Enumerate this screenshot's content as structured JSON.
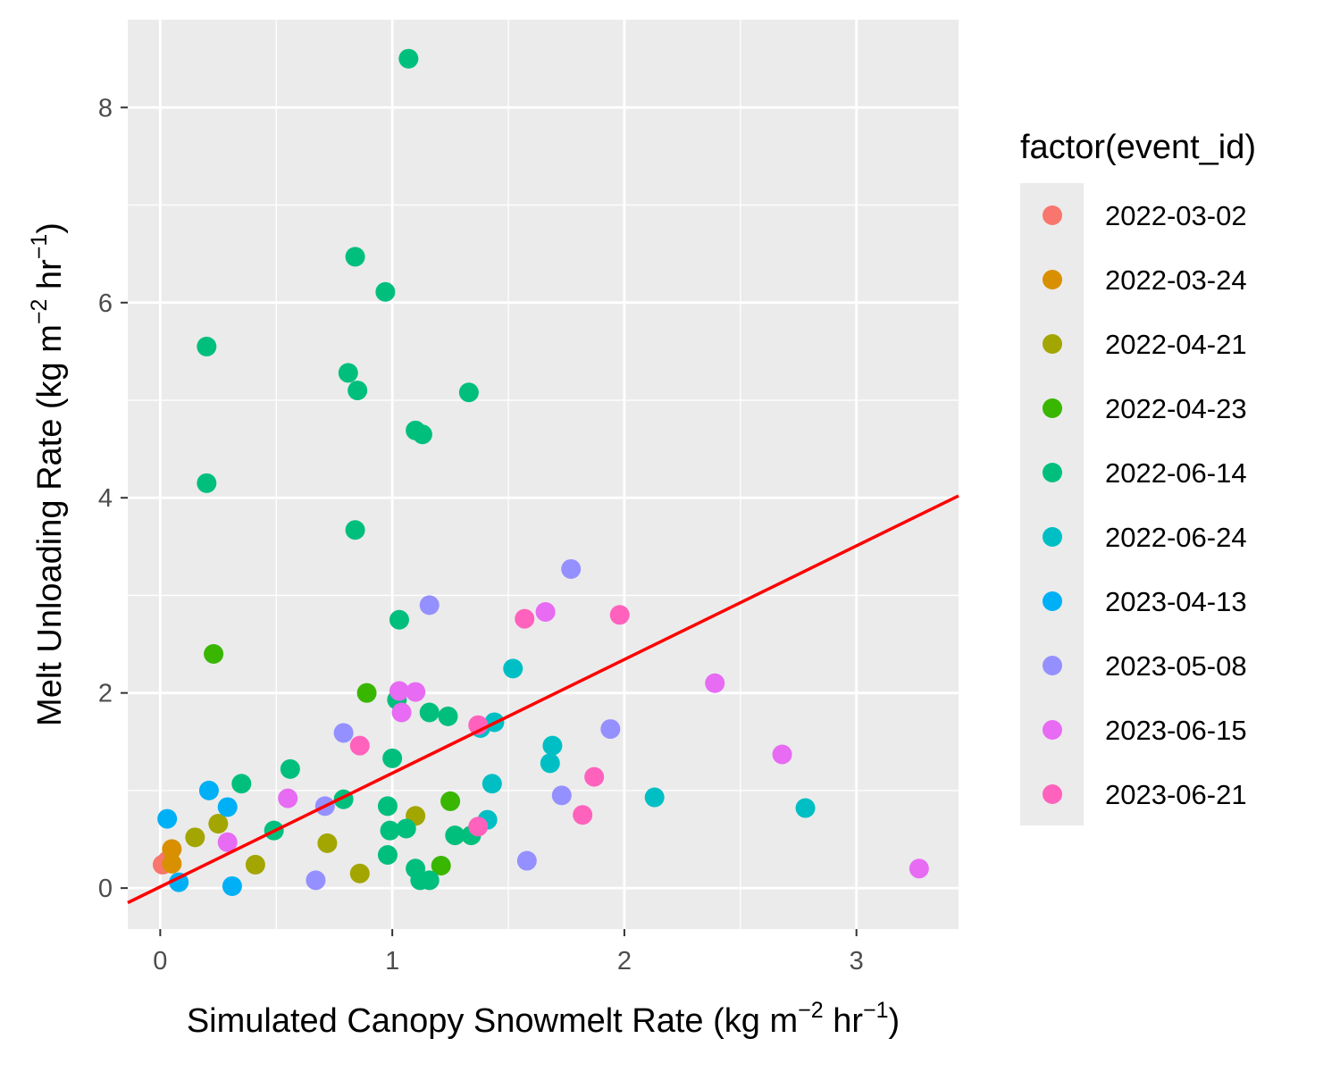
{
  "chart_data": {
    "type": "scatter",
    "xlabel": "Simulated Canopy Snowmelt Rate (kg m",
    "xlabel_sup1": "−2",
    "xlabel_mid": " hr",
    "xlabel_sup2": "−1",
    "xlabel_end": ")",
    "ylabel": "Melt Unloading Rate (kg m",
    "ylabel_sup1": "−2",
    "ylabel_mid": " hr",
    "ylabel_sup2": "−1",
    "ylabel_end": ")",
    "xlim": [
      -0.14,
      3.44
    ],
    "ylim": [
      -0.42,
      8.9
    ],
    "x_ticks": [
      0,
      1,
      2,
      3
    ],
    "y_ticks": [
      0,
      2,
      4,
      6,
      8
    ],
    "grid": true,
    "legend": {
      "title": "factor(event_id)",
      "position": "right"
    },
    "fit_line": {
      "x": [
        -0.14,
        3.44
      ],
      "y": [
        -0.15,
        4.02
      ],
      "color": "#ff0000"
    },
    "series": [
      {
        "name": "2022-03-02",
        "color": "#F8766D",
        "points": [
          [
            0.01,
            0.24
          ],
          [
            0.03,
            0.28
          ]
        ]
      },
      {
        "name": "2022-03-24",
        "color": "#D89000",
        "points": [
          [
            0.05,
            0.4
          ],
          [
            0.05,
            0.25
          ]
        ]
      },
      {
        "name": "2022-04-21",
        "color": "#A3A500",
        "points": [
          [
            0.15,
            0.52
          ],
          [
            0.25,
            0.66
          ],
          [
            0.41,
            0.24
          ],
          [
            0.72,
            0.46
          ],
          [
            0.86,
            0.15
          ],
          [
            1.1,
            0.74
          ]
        ]
      },
      {
        "name": "2022-04-23",
        "color": "#39B600",
        "points": [
          [
            0.23,
            2.4
          ],
          [
            0.89,
            2.0
          ],
          [
            1.21,
            0.23
          ],
          [
            1.25,
            0.89
          ]
        ]
      },
      {
        "name": "2022-06-14",
        "color": "#00BF7D",
        "points": [
          [
            1.07,
            8.5
          ],
          [
            0.84,
            6.47
          ],
          [
            0.97,
            6.11
          ],
          [
            0.2,
            5.55
          ],
          [
            0.81,
            5.28
          ],
          [
            0.85,
            5.1
          ],
          [
            1.33,
            5.08
          ],
          [
            1.1,
            4.69
          ],
          [
            1.13,
            4.65
          ],
          [
            0.2,
            4.15
          ],
          [
            0.84,
            3.67
          ],
          [
            1.03,
            2.75
          ],
          [
            1.02,
            1.93
          ],
          [
            1.16,
            1.8
          ],
          [
            1.24,
            1.76
          ],
          [
            1.0,
            1.33
          ],
          [
            0.35,
            1.07
          ],
          [
            0.56,
            1.22
          ],
          [
            0.79,
            0.91
          ],
          [
            0.49,
            0.59
          ],
          [
            0.98,
            0.84
          ],
          [
            0.99,
            0.59
          ],
          [
            1.06,
            0.61
          ],
          [
            0.98,
            0.34
          ],
          [
            1.1,
            0.2
          ],
          [
            1.12,
            0.08
          ],
          [
            1.16,
            0.08
          ],
          [
            1.27,
            0.54
          ],
          [
            1.34,
            0.54
          ]
        ]
      },
      {
        "name": "2022-06-24",
        "color": "#00BFC4",
        "points": [
          [
            1.52,
            2.25
          ],
          [
            1.38,
            1.64
          ],
          [
            1.44,
            1.7
          ],
          [
            1.69,
            1.46
          ],
          [
            1.68,
            1.28
          ],
          [
            1.43,
            1.07
          ],
          [
            1.41,
            0.7
          ],
          [
            2.13,
            0.93
          ],
          [
            2.78,
            0.82
          ]
        ]
      },
      {
        "name": "2023-04-13",
        "color": "#00B0F6",
        "points": [
          [
            0.03,
            0.71
          ],
          [
            0.21,
            1.0
          ],
          [
            0.29,
            0.83
          ],
          [
            0.08,
            0.06
          ],
          [
            0.31,
            0.02
          ]
        ]
      },
      {
        "name": "2023-05-08",
        "color": "#9590FF",
        "points": [
          [
            1.77,
            3.27
          ],
          [
            1.16,
            2.9
          ],
          [
            0.79,
            1.59
          ],
          [
            0.71,
            0.84
          ],
          [
            0.67,
            0.08
          ],
          [
            1.58,
            0.28
          ],
          [
            1.73,
            0.95
          ],
          [
            1.94,
            1.63
          ]
        ]
      },
      {
        "name": "2023-06-15",
        "color": "#E76BF3",
        "points": [
          [
            1.66,
            2.83
          ],
          [
            1.03,
            2.02
          ],
          [
            1.1,
            2.01
          ],
          [
            1.04,
            1.8
          ],
          [
            2.39,
            2.1
          ],
          [
            0.55,
            0.92
          ],
          [
            0.29,
            0.47
          ],
          [
            2.68,
            1.37
          ],
          [
            3.27,
            0.2
          ]
        ]
      },
      {
        "name": "2023-06-21",
        "color": "#FF62BC",
        "points": [
          [
            1.57,
            2.76
          ],
          [
            1.98,
            2.8
          ],
          [
            0.86,
            1.46
          ],
          [
            1.37,
            1.67
          ],
          [
            1.87,
            1.14
          ],
          [
            1.82,
            0.75
          ],
          [
            1.37,
            0.63
          ]
        ]
      }
    ]
  }
}
